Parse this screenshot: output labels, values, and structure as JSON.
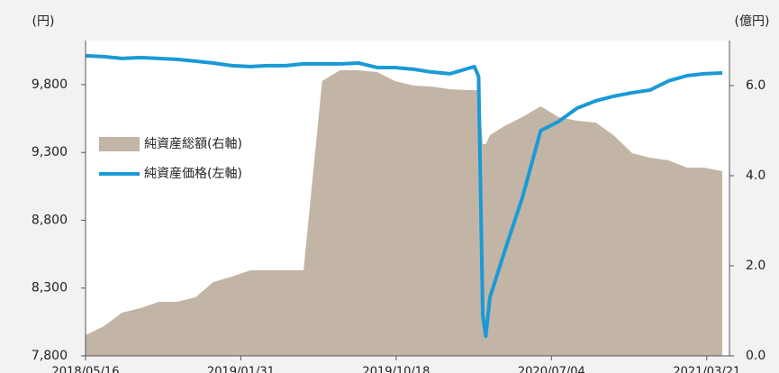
{
  "chart_data": {
    "type": "line_area",
    "ylabel": "(円)",
    "y2label": "(億円)",
    "x": [
      "2018/05/16",
      "2018/06/16",
      "2018/07/16",
      "2018/08/16",
      "2018/09/16",
      "2018/10/16",
      "2018/11/16",
      "2018/12/16",
      "2019/01/16",
      "2019/02/16",
      "2019/03/16",
      "2019/04/16",
      "2019/05/16",
      "2019/06/16",
      "2019/07/16",
      "2019/08/16",
      "2019/09/16",
      "2019/10/16",
      "2019/11/16",
      "2019/12/16",
      "2020/01/16",
      "2020/02/16",
      "2020/02/26",
      "2020/03/04",
      "2020/03/11",
      "2020/03/16",
      "2020/03/23",
      "2020/04/16",
      "2020/05/16",
      "2020/06/16",
      "2020/07/16",
      "2020/08/16",
      "2020/09/16",
      "2020/10/16",
      "2020/11/16",
      "2020/12/16",
      "2021/01/16",
      "2021/02/16",
      "2021/03/16",
      "2021/04/16"
    ],
    "xlim": [
      "2018/05/16",
      "2021/04/28"
    ],
    "xticks": [
      "2018/05/16",
      "2019/01/31",
      "2019/10/18",
      "2020/07/04",
      "2021/03/21"
    ],
    "ylim": [
      7800,
      10125
    ],
    "yticks": [
      {
        "value": 7800,
        "label": "7,800"
      },
      {
        "value": 8300,
        "label": "8,300"
      },
      {
        "value": 8800,
        "label": "8,800"
      },
      {
        "value": 9300,
        "label": "9,300"
      },
      {
        "value": 9800,
        "label": "9,800"
      }
    ],
    "y2lim": [
      0,
      7
    ],
    "y2ticks": [
      {
        "value": 0,
        "label": "0.0"
      },
      {
        "value": 2,
        "label": "2.0"
      },
      {
        "value": 4,
        "label": "4.0"
      },
      {
        "value": 6,
        "label": "6.0"
      }
    ],
    "series": [
      {
        "name": "純資産総額(右軸)",
        "type": "area",
        "axis": "y2",
        "color": "#c3b5a6",
        "values": [
          0.46,
          0.66,
          0.96,
          1.06,
          1.2,
          1.2,
          1.3,
          1.64,
          1.76,
          1.9,
          1.9,
          1.9,
          1.9,
          6.1,
          6.34,
          6.34,
          6.3,
          6.1,
          6.0,
          5.98,
          5.92,
          5.9,
          5.9,
          5.9,
          4.7,
          4.7,
          4.9,
          5.1,
          5.3,
          5.54,
          5.3,
          5.22,
          5.18,
          4.9,
          4.5,
          4.4,
          4.34,
          4.18,
          4.18,
          4.1
        ]
      },
      {
        "name": "純資産価格(左軸)",
        "type": "line",
        "color": "#1a9ad6",
        "values": [
          10013,
          10006,
          9993,
          10000,
          9993,
          9986,
          9973,
          9959,
          9940,
          9933,
          9940,
          9940,
          9953,
          9953,
          9953,
          9959,
          9926,
          9926,
          9913,
          9893,
          9880,
          9920,
          9933,
          9860,
          8099,
          7946,
          8232,
          8564,
          8963,
          9461,
          9528,
          9627,
          9680,
          9714,
          9740,
          9760,
          9827,
          9866,
          9880,
          9886
        ]
      }
    ]
  }
}
